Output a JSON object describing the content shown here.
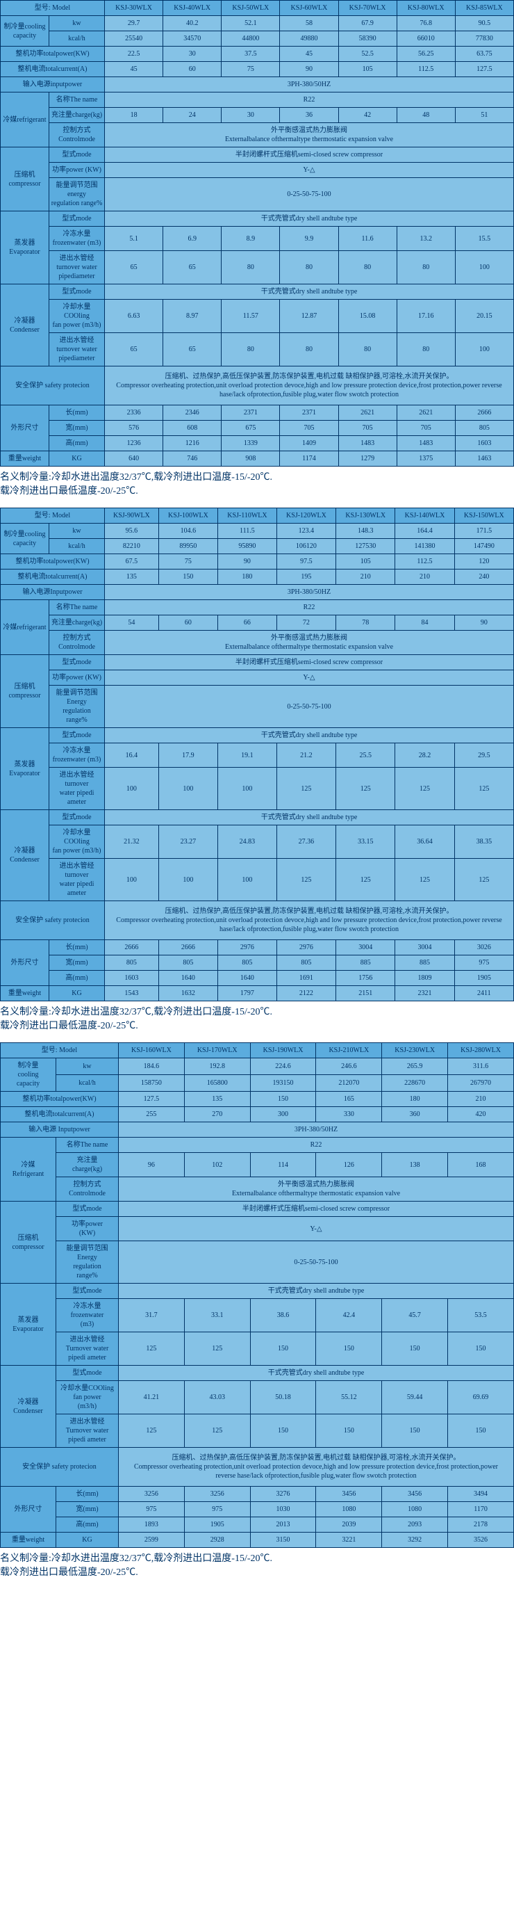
{
  "colors": {
    "bg_light": "#85c2e6",
    "bg_dark": "#5bacde",
    "border": "#003366",
    "text": "#003366"
  },
  "note_text": "名义制冷量:冷却水进出温度32/37℃,载冷剂进出口温度-15/-20℃.\n载冷剂进出口最低温度-20/-25℃.",
  "t1": {
    "model_label": "型号: Model",
    "models": [
      "KSJ-30WLX",
      "KSJ-40WLX",
      "KSJ-50WLX",
      "KSJ-60WLX",
      "KSJ-70WLX",
      "KSJ-80WLX",
      "KSJ-85WLX"
    ],
    "cooling_label": "制冷量cooling\ncapacity",
    "kw_label": "kw",
    "kw": [
      "29.7",
      "40.2",
      "52.1",
      "58",
      "67.9",
      "76.8",
      "90.5"
    ],
    "kcal_label": "kcal/h",
    "kcal": [
      "25540",
      "34570",
      "44800",
      "49880",
      "58390",
      "66010",
      "77830"
    ],
    "totalpower_label": "整机功率totalpower(KW)",
    "totalpower": [
      "22.5",
      "30",
      "37.5",
      "45",
      "52.5",
      "56.25",
      "63.75"
    ],
    "totalcurrent_label": "整机电流totalcurrent(A)",
    "totalcurrent": [
      "45",
      "60",
      "75",
      "90",
      "105",
      "112.5",
      "127.5"
    ],
    "inputpower_label": "输入电源inputpower",
    "inputpower": "3PH-380/50HZ",
    "refrig_label": "冷媒refrigerant",
    "name_label": "名称The name",
    "name": "R22",
    "charge_label": "充注量charge(kg)",
    "charge": [
      "18",
      "24",
      "30",
      "36",
      "42",
      "48",
      "51"
    ],
    "ctrl_label": "控制方式Controlmode",
    "ctrl": "外平衡感温式热力膨胀阀\nExternalbalance ofthermaltype thermostatic expansion valve",
    "comp_label": "压缩机compressor",
    "mode_label": "型式mode",
    "comp_mode": "半封闭螺杆式压缩机semi-closed screw compressor",
    "power_label": "功率power (KW)",
    "comp_power": "Y-△",
    "energy_label": "能量调节范围energy\nregulation range%",
    "energy": "0-25-50-75-100",
    "evap_label": "蒸发器\nEvaporator",
    "evap_mode": "干式壳管式dry shell andtube type",
    "frozen_label": "冷冻水量frozenwater (m3)",
    "frozen": [
      "5.1",
      "6.9",
      "8.9",
      "9.9",
      "11.6",
      "13.2",
      "15.5"
    ],
    "evap_pipe_label": "进出水管经turnover water\npipediameter",
    "evap_pipe": [
      "65",
      "65",
      "80",
      "80",
      "80",
      "80",
      "100"
    ],
    "cond_label": "冷凝器\nCondenser",
    "cond_mode": "干式壳管式dry shell andtube type",
    "cool_label": "冷却水量COOling\nfan power (m3/h)",
    "cool": [
      "6.63",
      "8.97",
      "11.57",
      "12.87",
      "15.08",
      "17.16",
      "20.15"
    ],
    "cond_pipe_label": "进出水管经turnover water\npipediameter",
    "cond_pipe": [
      "65",
      "65",
      "80",
      "80",
      "80",
      "80",
      "100"
    ],
    "safety_label": "安全保护 safety protecion",
    "safety": "压缩机、过热保护,高低压保护装置,防冻保护装置,电机过载 缺相保护器,可溶栓,水流开关保护。\nCompressor overheating protection,unit overload protection devoce,high and low pressure protection device,frost protection,power reverse hase/lack ofprotection,fusible plug,water flow swotch protection",
    "dim_label": "外形尺寸",
    "len_label": "长(mm)",
    "len": [
      "2336",
      "2346",
      "2371",
      "2371",
      "2621",
      "2621",
      "2666"
    ],
    "wid_label": "宽(mm)",
    "wid": [
      "576",
      "608",
      "675",
      "705",
      "705",
      "705",
      "805"
    ],
    "hei_label": "高(mm)",
    "hei": [
      "1236",
      "1216",
      "1339",
      "1409",
      "1483",
      "1483",
      "1603"
    ],
    "weight_label": "重量weight",
    "weight_unit": "KG",
    "weight": [
      "640",
      "746",
      "908",
      "1174",
      "1279",
      "1375",
      "1463"
    ]
  },
  "t2": {
    "model_label": "型号: Model",
    "models": [
      "KSJ-90WLX",
      "KSJ-100WLX",
      "KSJ-110WLX",
      "KSJ-120WLX",
      "KSJ-130WLX",
      "KSJ-140WLX",
      "KSJ-150WLX"
    ],
    "cooling_label": "制冷量cooling\ncapacity",
    "kw_label": "kw",
    "kw": [
      "95.6",
      "104.6",
      "111.5",
      "123.4",
      "148.3",
      "164.4",
      "171.5"
    ],
    "kcal_label": "kcal/h",
    "kcal": [
      "82210",
      "89950",
      "95890",
      "106120",
      "127530",
      "141380",
      "147490"
    ],
    "totalpower_label": "整机功率totalpower(KW)",
    "totalpower": [
      "67.5",
      "75",
      "90",
      "97.5",
      "105",
      "112.5",
      "120"
    ],
    "totalcurrent_label": "整机电流totalcurrent(A)",
    "totalcurrent": [
      "135",
      "150",
      "180",
      "195",
      "210",
      "210",
      "240"
    ],
    "inputpower_label": "输入电源Inputpower",
    "inputpower": "3PH-380/50HZ",
    "refrig_label": "冷媒refrigerant",
    "name_label": "名称The name",
    "name": "R22",
    "charge_label": "充注量charge(kg)",
    "charge": [
      "54",
      "60",
      "66",
      "72",
      "78",
      "84",
      "90"
    ],
    "ctrl_label": "控制方式Controlmode",
    "ctrl": "外平衡感温式热力膨胀阀\nExternalbalance ofthermaltype thermostatic expansion valve",
    "comp_label": "压缩机compressor",
    "mode_label": "型式mode",
    "comp_mode": "半封闭螺杆式压缩机semi-closed screw compressor",
    "power_label": "功率power (KW)",
    "comp_power": "Y-△",
    "energy_label": "能量调节范围\nEnergy\nregulation\nrange%",
    "energy": "0-25-50-75-100",
    "evap_label": "蒸发器\nEvaporator",
    "evap_mode": "干式壳管式dry shell andtube type",
    "frozen_label": "冷冻水量\nfrozenwater (m3)",
    "frozen": [
      "16.4",
      "17.9",
      "19.1",
      "21.2",
      "25.5",
      "28.2",
      "29.5"
    ],
    "evap_pipe_label": "进出水管经turnover\nwater pipedi\nameter",
    "evap_pipe": [
      "100",
      "100",
      "100",
      "125",
      "125",
      "125",
      "125"
    ],
    "cond_label": "冷凝器\nCondenser",
    "cond_mode": "干式壳管式dry shell andtube type",
    "cool_label": "冷却水量COOling\nfan power (m3/h)",
    "cool": [
      "21.32",
      "23.27",
      "24.83",
      "27.36",
      "33.15",
      "36.64",
      "38.35"
    ],
    "cond_pipe_label": "进出水管经turnover\nwater pipedi\nameter",
    "cond_pipe": [
      "100",
      "100",
      "100",
      "125",
      "125",
      "125",
      "125"
    ],
    "safety_label": "安全保护 safety protecion",
    "safety": "压缩机、过热保护,高低压保护装置,防冻保护装置,电机过载 缺相保护器,可溶栓,水流开关保护。\nCompressor overheating protection,unit overload protection devoce,high and low pressure protection device,frost protection,power reverse hase/lack ofprotection,fusible plug,water flow swotch protection",
    "dim_label": "外形尺寸",
    "len_label": "长(mm)",
    "len": [
      "2666",
      "2666",
      "2976",
      "2976",
      "3004",
      "3004",
      "3026"
    ],
    "wid_label": "宽(mm)",
    "wid": [
      "805",
      "805",
      "805",
      "805",
      "885",
      "885",
      "975"
    ],
    "hei_label": "高(mm)",
    "hei": [
      "1603",
      "1640",
      "1640",
      "1691",
      "1756",
      "1809",
      "1905"
    ],
    "weight_label": "重量weight",
    "weight_unit": "KG",
    "weight": [
      "1543",
      "1632",
      "1797",
      "2122",
      "2151",
      "2321",
      "2411"
    ]
  },
  "t3": {
    "model_label": "型号: Model",
    "models": [
      "KSJ-160WLX",
      "KSJ-170WLX",
      "KSJ-190WLX",
      "KSJ-210WLX",
      "KSJ-230WLX",
      "KSJ-280WLX"
    ],
    "cooling_label": "制冷量\ncooling\ncapacity",
    "kw_label": "kw",
    "kw": [
      "184.6",
      "192.8",
      "224.6",
      "246.6",
      "265.9",
      "311.6"
    ],
    "kcal_label": "kcal/h",
    "kcal": [
      "158750",
      "165800",
      "193150",
      "212070",
      "228670",
      "267970"
    ],
    "totalpower_label": "整机功率totalpower(KW)",
    "totalpower": [
      "127.5",
      "135",
      "150",
      "165",
      "180",
      "210"
    ],
    "totalcurrent_label": "整机电流totalcurrent(A)",
    "totalcurrent": [
      "255",
      "270",
      "300",
      "330",
      "360",
      "420"
    ],
    "inputpower_label": "输入电源 Inputpower",
    "inputpower": "3PH-380/50HZ",
    "refrig_label": "冷媒\nRefrigerant",
    "name_label": "名称The name",
    "name": "R22",
    "charge_label": "充注量\ncharge(kg)",
    "charge": [
      "96",
      "102",
      "114",
      "126",
      "138",
      "168"
    ],
    "ctrl_label": "控制方式\nControlmode",
    "ctrl": "外平衡感温式热力膨胀阀\nExternalbalance ofthermaltype thermostatic expansion valve",
    "comp_label": "压缩机\ncompressor",
    "mode_label": "型式mode",
    "comp_mode": "半封闭螺杆式压缩机semi-closed screw compressor",
    "power_label": "功率power\n(KW)",
    "comp_power": "Y-△",
    "energy_label": "能量调节范围\nEnergy\nregulation\nrange%",
    "energy": "0-25-50-75-100",
    "evap_label": "蒸发器\nEvaporator",
    "evap_mode": "干式壳管式dry shell andtube type",
    "frozen_label": "冷冻水量\nfrozenwater\n(m3)",
    "frozen": [
      "31.7",
      "33.1",
      "38.6",
      "42.4",
      "45.7",
      "53.5"
    ],
    "evap_pipe_label": "进出水管经\nTurnover water\npipedi ameter",
    "evap_pipe": [
      "125",
      "125",
      "150",
      "150",
      "150",
      "150"
    ],
    "cond_label": "冷凝器\nCondenser",
    "cond_mode": "干式壳管式dry shell andtube type",
    "cool_label": "冷却水量COOling\nfan power\n(m3/h)",
    "cool": [
      "41.21",
      "43.03",
      "50.18",
      "55.12",
      "59.44",
      "69.69"
    ],
    "cond_pipe_label": "进出水管经\nTurnover water\npipedi ameter",
    "cond_pipe": [
      "125",
      "125",
      "150",
      "150",
      "150",
      "150"
    ],
    "safety_label": "安全保护 safety protecion",
    "safety": "压缩机、过热保护,高低压保护装置,防冻保护装置,电机过载 缺相保护器,可溶栓,水流开关保护。\nCompressor overheating protection,unit overload protection devoce,high and low pressure protection device,frost protection,power reverse hase/lack ofprotection,fusible plug,water flow swotch protection",
    "dim_label": "外形尺寸",
    "len_label": "长(mm)",
    "len": [
      "3256",
      "3256",
      "3276",
      "3456",
      "3456",
      "3494"
    ],
    "wid_label": "宽(mm)",
    "wid": [
      "975",
      "975",
      "1030",
      "1080",
      "1080",
      "1170"
    ],
    "hei_label": "高(mm)",
    "hei": [
      "1893",
      "1905",
      "2013",
      "2039",
      "2093",
      "2178"
    ],
    "weight_label": "重量weight",
    "weight_unit": "KG",
    "weight": [
      "2599",
      "2928",
      "3150",
      "3221",
      "3292",
      "3526"
    ]
  }
}
